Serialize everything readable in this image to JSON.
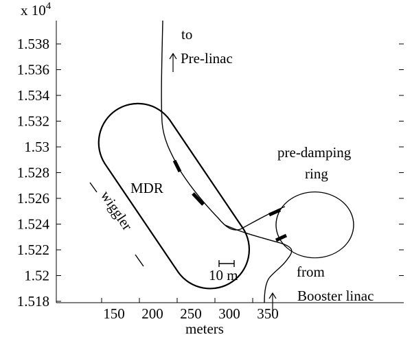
{
  "figure": {
    "exponent_prefix": "x 10",
    "exponent_power": "4",
    "xlabel": "meters",
    "x_ticks": [
      "150",
      "200",
      "250",
      "300",
      "350"
    ],
    "y_ticks": [
      "1.538",
      "1.536",
      "1.534",
      "1.532",
      "1.53",
      "1.528",
      "1.526",
      "1.524",
      "1.522",
      "1.52",
      "1.518"
    ]
  },
  "annotations": {
    "to": "to",
    "pre_linac": "Pre-linac",
    "pre_damping": "pre-damping",
    "ring": "ring",
    "mdr": "MDR",
    "wiggler": "wiggler",
    "scale": "10 m",
    "from": "from",
    "booster_linac": "Booster linac"
  },
  "colors": {
    "line": "#000000",
    "background": "#ffffff"
  }
}
